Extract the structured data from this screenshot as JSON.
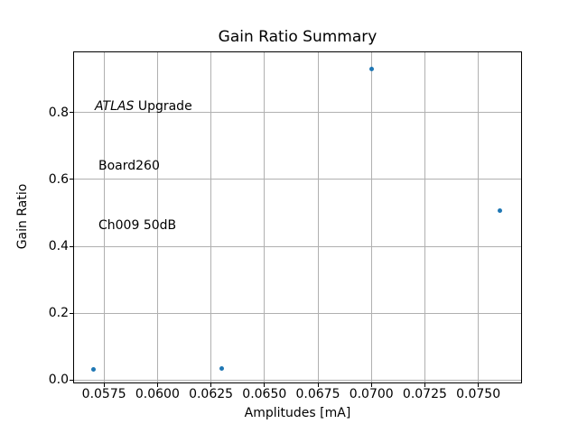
{
  "figure": {
    "background": "#ffffff"
  },
  "chart_data": {
    "type": "scatter",
    "title": "Gain Ratio Summary",
    "xlabel": "Amplitudes [mA]",
    "ylabel": "Gain Ratio",
    "points": [
      {
        "x": 0.057,
        "y": 0.032
      },
      {
        "x": 0.063,
        "y": 0.035
      },
      {
        "x": 0.07,
        "y": 0.932
      },
      {
        "x": 0.076,
        "y": 0.508
      }
    ],
    "xlim": [
      0.0561,
      0.077
    ],
    "ylim": [
      -0.008,
      0.981
    ],
    "xticks": [
      0.0575,
      0.06,
      0.0625,
      0.065,
      0.0675,
      0.07,
      0.0725,
      0.075
    ],
    "xtick_labels": [
      "0.0575",
      "0.0600",
      "0.0625",
      "0.0650",
      "0.0675",
      "0.0700",
      "0.0725",
      "0.0750"
    ],
    "yticks": [
      0.0,
      0.2,
      0.4,
      0.6,
      0.8
    ],
    "ytick_labels": [
      "0.0",
      "0.2",
      "0.4",
      "0.6",
      "0.8"
    ],
    "grid": true,
    "colors": {
      "marker": "#1f77b4",
      "grid": "#b0b0b0",
      "spine": "#000000",
      "text": "#000000"
    },
    "annotation": {
      "experiment": "ATLAS",
      "label": " Upgrade",
      "board": "Board260",
      "channel": "Ch009 50dB"
    }
  }
}
